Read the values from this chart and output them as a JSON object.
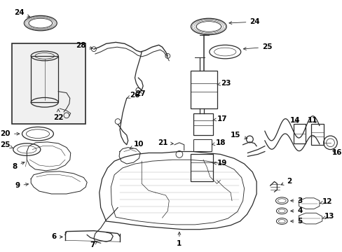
{
  "background_color": "#ffffff",
  "line_color": "#2a2a2a",
  "text_color": "#000000",
  "fig_width": 4.89,
  "fig_height": 3.6,
  "dpi": 100,
  "label_fontsize": 7.5,
  "lw": 0.9
}
